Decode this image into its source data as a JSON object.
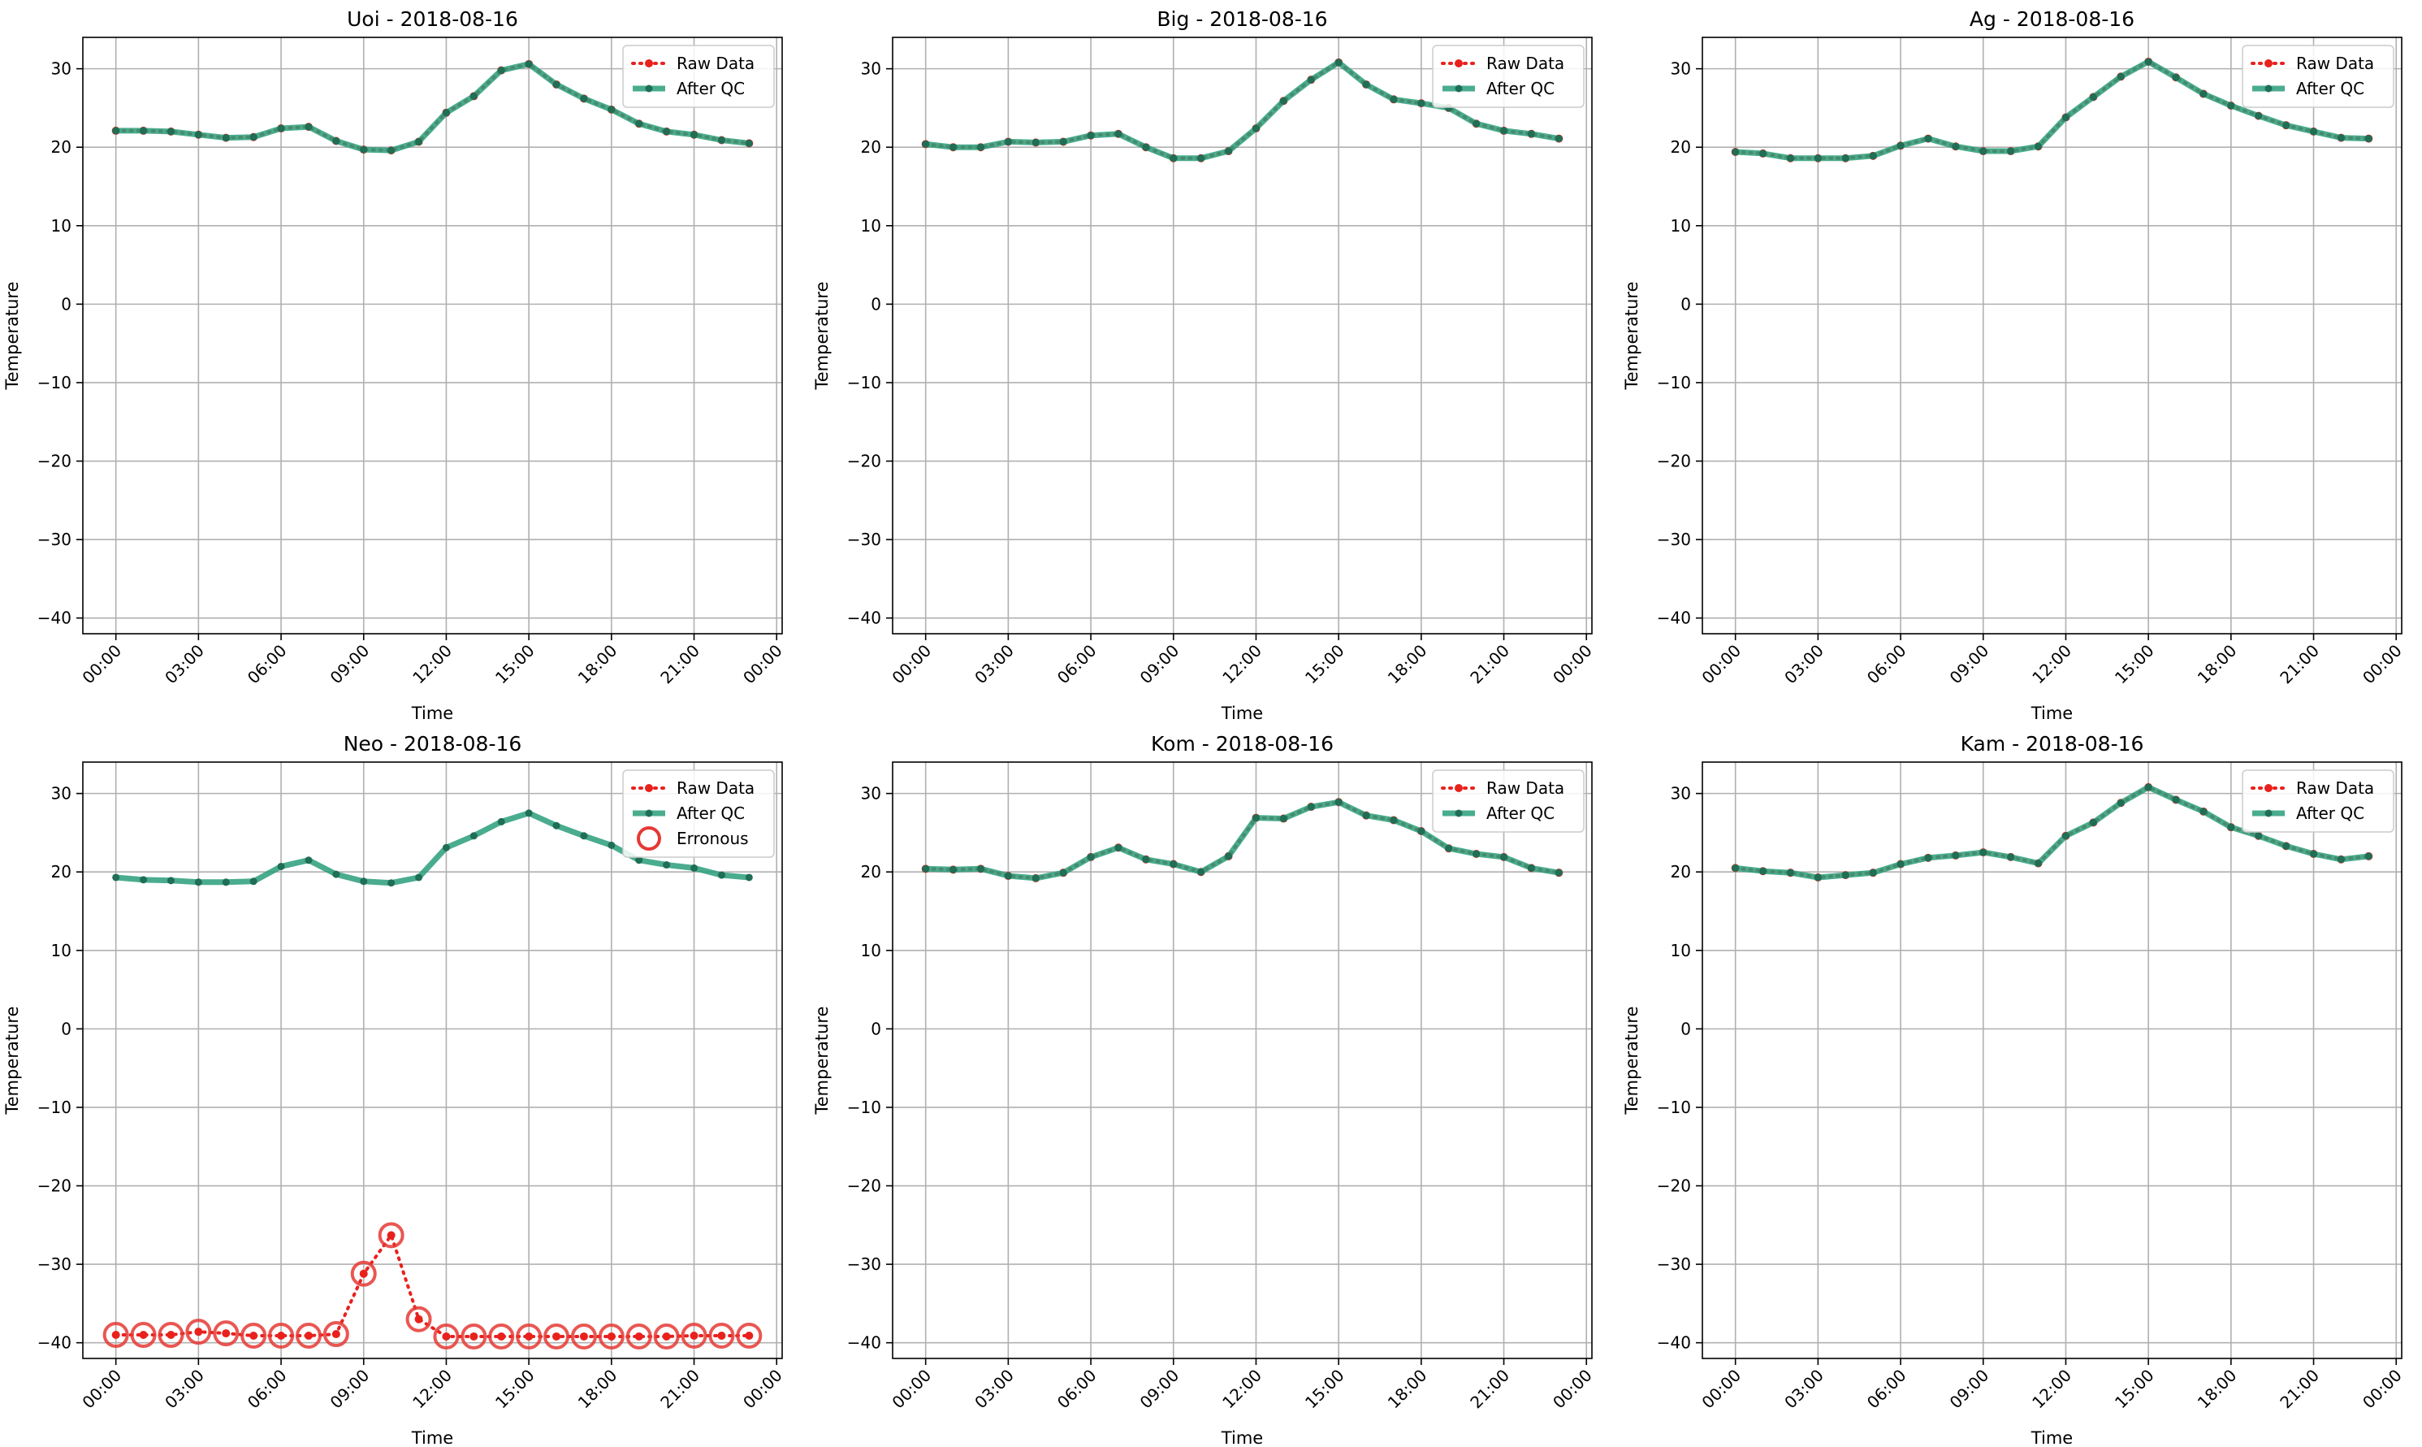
{
  "figure": {
    "colors": {
      "raw": "#e8211d",
      "qc": "#2a9d7a",
      "qc_marker": "#1f6e55",
      "erroneous": "#e53935"
    }
  },
  "chart_data": [
    {
      "type": "line",
      "title": "Uoi - 2018-08-16",
      "xlabel": "Time",
      "ylabel": "Temperature",
      "ylim": [
        -42,
        34
      ],
      "yticks": [
        -40,
        -30,
        -20,
        -10,
        0,
        10,
        20,
        30
      ],
      "xticks": [
        "00:00",
        "03:00",
        "06:00",
        "09:00",
        "12:00",
        "15:00",
        "18:00",
        "21:00",
        "00:00"
      ],
      "xlim_hours": [
        -1.2,
        24.2
      ],
      "x_hours": [
        0,
        1,
        2,
        3,
        4,
        5,
        6,
        7,
        8,
        9,
        10,
        11,
        12,
        13,
        14,
        15,
        16,
        17,
        18,
        19,
        20,
        21,
        22,
        23
      ],
      "grid": true,
      "legend": "top-right",
      "series": [
        {
          "name": "Raw Data",
          "values": [
            22.1,
            22.1,
            22.0,
            21.6,
            21.2,
            21.3,
            22.4,
            22.6,
            20.8,
            19.7,
            19.6,
            20.7,
            24.4,
            26.5,
            29.8,
            30.6,
            28.0,
            26.2,
            24.8,
            23.0,
            22.0,
            21.6,
            20.9,
            20.5
          ]
        },
        {
          "name": "After QC",
          "values": [
            22.1,
            22.1,
            22.0,
            21.6,
            21.2,
            21.3,
            22.4,
            22.6,
            20.8,
            19.7,
            19.6,
            20.7,
            24.4,
            26.5,
            29.8,
            30.6,
            28.0,
            26.2,
            24.8,
            23.0,
            22.0,
            21.6,
            20.9,
            20.5
          ]
        }
      ]
    },
    {
      "type": "line",
      "title": "Big - 2018-08-16",
      "xlabel": "Time",
      "ylabel": "Temperature",
      "ylim": [
        -42,
        34
      ],
      "yticks": [
        -40,
        -30,
        -20,
        -10,
        0,
        10,
        20,
        30
      ],
      "xticks": [
        "00:00",
        "03:00",
        "06:00",
        "09:00",
        "12:00",
        "15:00",
        "18:00",
        "21:00",
        "00:00"
      ],
      "xlim_hours": [
        -1.2,
        24.2
      ],
      "x_hours": [
        0,
        1,
        2,
        3,
        4,
        5,
        6,
        7,
        8,
        9,
        10,
        11,
        12,
        13,
        14,
        15,
        16,
        17,
        18,
        19,
        20,
        21,
        22,
        23
      ],
      "grid": true,
      "legend": "top-right",
      "series": [
        {
          "name": "Raw Data",
          "values": [
            20.4,
            20.0,
            20.0,
            20.7,
            20.6,
            20.7,
            21.5,
            21.7,
            20.0,
            18.6,
            18.6,
            19.5,
            22.4,
            25.9,
            28.6,
            30.8,
            28.0,
            26.1,
            25.6,
            25.0,
            23.0,
            22.1,
            21.7,
            21.1
          ]
        },
        {
          "name": "After QC",
          "values": [
            20.4,
            20.0,
            20.0,
            20.7,
            20.6,
            20.7,
            21.5,
            21.7,
            20.0,
            18.6,
            18.6,
            19.5,
            22.4,
            25.9,
            28.6,
            30.8,
            28.0,
            26.1,
            25.6,
            25.0,
            23.0,
            22.1,
            21.7,
            21.1
          ]
        }
      ]
    },
    {
      "type": "line",
      "title": "Ag - 2018-08-16",
      "xlabel": "Time",
      "ylabel": "Temperature",
      "ylim": [
        -42,
        34
      ],
      "yticks": [
        -40,
        -30,
        -20,
        -10,
        0,
        10,
        20,
        30
      ],
      "xticks": [
        "00:00",
        "03:00",
        "06:00",
        "09:00",
        "12:00",
        "15:00",
        "18:00",
        "21:00",
        "00:00"
      ],
      "xlim_hours": [
        -1.2,
        24.2
      ],
      "x_hours": [
        0,
        1,
        2,
        3,
        4,
        5,
        6,
        7,
        8,
        9,
        10,
        11,
        12,
        13,
        14,
        15,
        16,
        17,
        18,
        19,
        20,
        21,
        22,
        23
      ],
      "grid": true,
      "legend": "top-right",
      "series": [
        {
          "name": "Raw Data",
          "values": [
            19.4,
            19.2,
            18.6,
            18.6,
            18.6,
            18.9,
            20.2,
            21.1,
            20.1,
            19.5,
            19.5,
            20.1,
            23.8,
            26.4,
            29.0,
            30.9,
            28.9,
            26.8,
            25.3,
            24.0,
            22.8,
            22.0,
            21.2,
            21.1
          ]
        },
        {
          "name": "After QC",
          "values": [
            19.4,
            19.2,
            18.6,
            18.6,
            18.6,
            18.9,
            20.2,
            21.1,
            20.1,
            19.5,
            19.5,
            20.1,
            23.8,
            26.4,
            29.0,
            30.9,
            28.9,
            26.8,
            25.3,
            24.0,
            22.8,
            22.0,
            21.2,
            21.1
          ]
        }
      ]
    },
    {
      "type": "line",
      "title": "Neo - 2018-08-16",
      "xlabel": "Time",
      "ylabel": "Temperature",
      "ylim": [
        -42,
        34
      ],
      "yticks": [
        -40,
        -30,
        -20,
        -10,
        0,
        10,
        20,
        30
      ],
      "xticks": [
        "00:00",
        "03:00",
        "06:00",
        "09:00",
        "12:00",
        "15:00",
        "18:00",
        "21:00",
        "00:00"
      ],
      "xlim_hours": [
        -1.2,
        24.2
      ],
      "x_hours": [
        0,
        1,
        2,
        3,
        4,
        5,
        6,
        7,
        8,
        9,
        10,
        11,
        12,
        13,
        14,
        15,
        16,
        17,
        18,
        19,
        20,
        21,
        22,
        23
      ],
      "grid": true,
      "legend": "top-right",
      "series": [
        {
          "name": "Raw Data",
          "values": [
            -39.0,
            -39.0,
            -39.0,
            -38.6,
            -38.8,
            -39.1,
            -39.1,
            -39.1,
            -38.9,
            -31.2,
            -26.3,
            -37.0,
            -39.2,
            -39.2,
            -39.2,
            -39.2,
            -39.2,
            -39.2,
            -39.2,
            -39.2,
            -39.2,
            -39.1,
            -39.1,
            -39.1
          ]
        },
        {
          "name": "After QC",
          "values": [
            19.3,
            19.0,
            18.9,
            18.7,
            18.7,
            18.8,
            20.7,
            21.5,
            19.7,
            18.8,
            18.6,
            19.3,
            23.1,
            24.6,
            26.4,
            27.5,
            25.9,
            24.6,
            23.4,
            21.5,
            20.9,
            20.5,
            19.6,
            19.3
          ]
        },
        {
          "name": "Erronous",
          "x_hours": [
            0,
            1,
            2,
            3,
            4,
            5,
            6,
            7,
            8,
            9,
            10,
            11,
            12,
            13,
            14,
            15,
            16,
            17,
            18,
            19,
            20,
            21,
            22,
            23
          ],
          "values": [
            -39.0,
            -39.0,
            -39.0,
            -38.6,
            -38.8,
            -39.1,
            -39.1,
            -39.1,
            -38.9,
            -31.2,
            -26.3,
            -37.0,
            -39.2,
            -39.2,
            -39.2,
            -39.2,
            -39.2,
            -39.2,
            -39.2,
            -39.2,
            -39.2,
            -39.1,
            -39.1,
            -39.1
          ]
        }
      ]
    },
    {
      "type": "line",
      "title": "Kom - 2018-08-16",
      "xlabel": "Time",
      "ylabel": "Temperature",
      "ylim": [
        -42,
        34
      ],
      "yticks": [
        -40,
        -30,
        -20,
        -10,
        0,
        10,
        20,
        30
      ],
      "xticks": [
        "00:00",
        "03:00",
        "06:00",
        "09:00",
        "12:00",
        "15:00",
        "18:00",
        "21:00",
        "00:00"
      ],
      "xlim_hours": [
        -1.2,
        24.2
      ],
      "x_hours": [
        0,
        1,
        2,
        3,
        4,
        5,
        6,
        7,
        8,
        9,
        10,
        11,
        12,
        13,
        14,
        15,
        16,
        17,
        18,
        19,
        20,
        21,
        22,
        23
      ],
      "grid": true,
      "legend": "top-right",
      "series": [
        {
          "name": "Raw Data",
          "values": [
            20.4,
            20.3,
            20.4,
            19.5,
            19.2,
            19.9,
            21.9,
            23.1,
            21.6,
            21.0,
            20.0,
            22.0,
            26.9,
            26.8,
            28.3,
            28.9,
            27.2,
            26.6,
            25.2,
            23.0,
            22.3,
            21.9,
            20.5,
            19.9
          ]
        },
        {
          "name": "After QC",
          "values": [
            20.4,
            20.3,
            20.4,
            19.5,
            19.2,
            19.9,
            21.9,
            23.1,
            21.6,
            21.0,
            20.0,
            22.0,
            26.9,
            26.8,
            28.3,
            28.9,
            27.2,
            26.6,
            25.2,
            23.0,
            22.3,
            21.9,
            20.5,
            19.9
          ]
        }
      ]
    },
    {
      "type": "line",
      "title": "Kam - 2018-08-16",
      "xlabel": "Time",
      "ylabel": "Temperature",
      "ylim": [
        -42,
        34
      ],
      "yticks": [
        -40,
        -30,
        -20,
        -10,
        0,
        10,
        20,
        30
      ],
      "xticks": [
        "00:00",
        "03:00",
        "06:00",
        "09:00",
        "12:00",
        "15:00",
        "18:00",
        "21:00",
        "00:00"
      ],
      "xlim_hours": [
        -1.2,
        24.2
      ],
      "x_hours": [
        0,
        1,
        2,
        3,
        4,
        5,
        6,
        7,
        8,
        9,
        10,
        11,
        12,
        13,
        14,
        15,
        16,
        17,
        18,
        19,
        20,
        21,
        22,
        23
      ],
      "grid": true,
      "legend": "top-right",
      "series": [
        {
          "name": "Raw Data",
          "values": [
            20.5,
            20.1,
            19.9,
            19.3,
            19.6,
            19.9,
            21.0,
            21.8,
            22.1,
            22.5,
            21.9,
            21.1,
            24.6,
            26.3,
            28.8,
            30.8,
            29.2,
            27.7,
            25.7,
            24.6,
            23.3,
            22.3,
            21.6,
            22.0
          ]
        },
        {
          "name": "After QC",
          "values": [
            20.5,
            20.1,
            19.9,
            19.3,
            19.6,
            19.9,
            21.0,
            21.8,
            22.1,
            22.5,
            21.9,
            21.1,
            24.6,
            26.3,
            28.8,
            30.8,
            29.2,
            27.7,
            25.7,
            24.6,
            23.3,
            22.3,
            21.6,
            22.0
          ]
        }
      ]
    }
  ]
}
